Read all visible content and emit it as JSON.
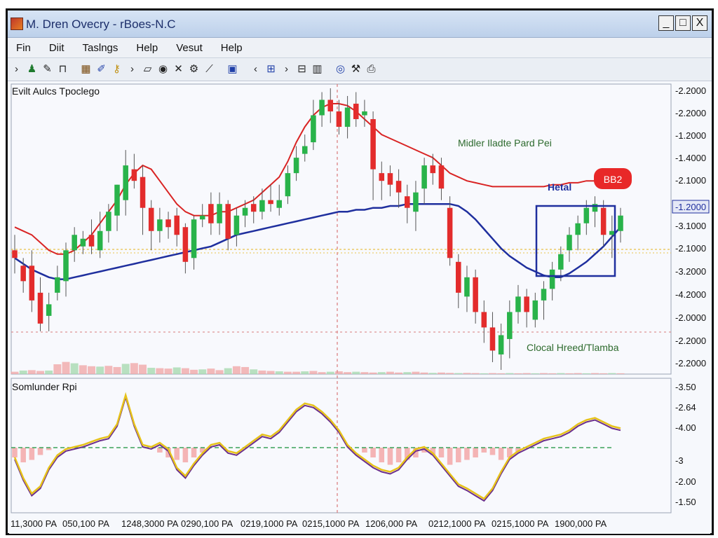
{
  "window": {
    "title": "M. Dren Ovecry - rBoes-N.C",
    "controls": [
      "_",
      "□",
      "X"
    ]
  },
  "menu": [
    "Fin",
    "Diit",
    "Taslngs",
    "Help",
    "Vesut",
    "Help"
  ],
  "toolbar_icons": [
    "arrow-icon",
    "person-icon",
    "pencil-icon",
    "bracket-icon",
    "chart-icon",
    "brush-icon",
    "key-icon",
    "chevron-icon",
    "rectangle-icon",
    "circle-icon",
    "cross-icon",
    "gear-icon",
    "line-icon",
    "screen-icon",
    "back-icon",
    "zoom-icon",
    "next-icon",
    "grid-icon",
    "bars-icon",
    "globe-icon",
    "tools-icon",
    "print-icon"
  ],
  "chart_data": {
    "type": "candlestick",
    "main_panel": {
      "title": "Evilt Aulcs Tpoclego",
      "price_axis_labels": [
        "-2.2000",
        "-2.2000",
        "-1.2000",
        "-1.4000",
        "-2.1000",
        "-1.2000",
        "-3.1000",
        "-2.1000",
        "-3.2000",
        "-4.2000",
        "-2.0000",
        "-2.2000",
        "-2.2000"
      ],
      "highlighted_price_label": "-1.2000",
      "annotations": {
        "upper_right": "Midler Iladte Pard Pei",
        "box_label": "Hetal",
        "badge": "BB2",
        "lower_right": "Clocal Hreed/Tlamba"
      },
      "candles": [
        [
          0,
          0.62,
          0.58,
          0.7,
          0.5
        ],
        [
          1,
          0.54,
          0.46,
          0.58,
          0.4
        ],
        [
          2,
          0.54,
          0.36,
          0.62,
          0.3
        ],
        [
          3,
          0.4,
          0.24,
          0.48,
          0.2
        ],
        [
          4,
          0.28,
          0.34,
          0.4,
          0.2
        ],
        [
          5,
          0.4,
          0.48,
          0.54,
          0.36
        ],
        [
          6,
          0.46,
          0.62,
          0.66,
          0.38
        ],
        [
          7,
          0.62,
          0.7,
          0.74,
          0.56
        ],
        [
          8,
          0.64,
          0.68,
          0.72,
          0.6
        ],
        [
          9,
          0.7,
          0.64,
          0.78,
          0.6
        ],
        [
          10,
          0.62,
          0.72,
          0.82,
          0.58
        ],
        [
          11,
          0.72,
          0.82,
          0.86,
          0.66
        ],
        [
          12,
          0.8,
          0.96,
          0.96,
          0.72
        ],
        [
          13,
          0.88,
          1.06,
          1.14,
          0.8
        ],
        [
          14,
          1.04,
          0.98,
          1.12,
          0.94
        ],
        [
          15,
          1.0,
          0.84,
          1.06,
          0.7
        ],
        [
          16,
          0.84,
          0.72,
          0.88,
          0.62
        ],
        [
          17,
          0.72,
          0.78,
          0.84,
          0.66
        ],
        [
          18,
          0.78,
          0.74,
          0.82,
          0.68
        ],
        [
          19,
          0.8,
          0.7,
          0.84,
          0.64
        ],
        [
          20,
          0.74,
          0.56,
          0.76,
          0.5
        ],
        [
          21,
          0.58,
          0.78,
          0.8,
          0.52
        ],
        [
          22,
          0.78,
          0.8,
          0.86,
          0.74
        ],
        [
          23,
          0.86,
          0.76,
          0.92,
          0.7
        ],
        [
          24,
          0.76,
          0.86,
          0.92,
          0.7
        ],
        [
          25,
          0.86,
          0.68,
          0.88,
          0.62
        ],
        [
          26,
          0.7,
          0.8,
          0.84,
          0.64
        ],
        [
          27,
          0.8,
          0.84,
          0.88,
          0.74
        ],
        [
          28,
          0.86,
          0.82,
          0.9,
          0.76
        ],
        [
          29,
          0.82,
          0.88,
          0.94,
          0.78
        ],
        [
          30,
          0.88,
          0.86,
          0.96,
          0.82
        ],
        [
          31,
          0.84,
          0.88,
          0.96,
          0.8
        ],
        [
          32,
          0.9,
          1.02,
          1.06,
          0.86
        ],
        [
          33,
          1.02,
          1.1,
          1.16,
          0.98
        ],
        [
          34,
          1.12,
          1.16,
          1.22,
          1.08
        ],
        [
          35,
          1.18,
          1.32,
          1.4,
          1.14
        ],
        [
          36,
          1.32,
          1.4,
          1.44,
          1.26
        ],
        [
          37,
          1.4,
          1.34,
          1.46,
          1.28
        ],
        [
          38,
          1.34,
          1.26,
          1.4,
          1.22
        ],
        [
          39,
          1.26,
          1.36,
          1.42,
          1.2
        ],
        [
          40,
          1.38,
          1.3,
          1.44,
          1.26
        ],
        [
          41,
          1.32,
          1.34,
          1.4,
          1.26
        ],
        [
          42,
          1.3,
          1.04,
          1.34,
          0.88
        ],
        [
          43,
          1.02,
          0.98,
          1.08,
          0.88
        ],
        [
          44,
          1.02,
          0.96,
          1.06,
          0.9
        ],
        [
          45,
          0.98,
          0.92,
          1.04,
          0.84
        ],
        [
          46,
          0.9,
          0.84,
          0.96,
          0.76
        ],
        [
          47,
          0.82,
          0.92,
          0.98,
          0.72
        ],
        [
          48,
          0.94,
          1.06,
          1.1,
          0.86
        ],
        [
          49,
          1.06,
          1.02,
          1.12,
          0.96
        ],
        [
          50,
          1.06,
          0.94,
          1.1,
          0.88
        ],
        [
          51,
          0.84,
          0.58,
          0.9,
          0.54
        ],
        [
          52,
          0.56,
          0.4,
          0.6,
          0.32
        ],
        [
          53,
          0.38,
          0.48,
          0.54,
          0.3
        ],
        [
          54,
          0.48,
          0.3,
          0.52,
          0.24
        ],
        [
          55,
          0.3,
          0.22,
          0.36,
          0.14
        ],
        [
          56,
          0.22,
          0.1,
          0.3,
          0.04
        ],
        [
          57,
          0.08,
          0.18,
          0.24,
          0.0
        ],
        [
          58,
          0.16,
          0.3,
          0.36,
          0.06
        ],
        [
          59,
          0.3,
          0.38,
          0.44,
          0.24
        ],
        [
          60,
          0.38,
          0.3,
          0.42,
          0.22
        ],
        [
          61,
          0.26,
          0.36,
          0.4,
          0.22
        ],
        [
          62,
          0.36,
          0.42,
          0.46,
          0.26
        ],
        [
          63,
          0.42,
          0.52,
          0.56,
          0.36
        ],
        [
          64,
          0.52,
          0.6,
          0.64,
          0.46
        ],
        [
          65,
          0.62,
          0.7,
          0.74,
          0.56
        ],
        [
          66,
          0.7,
          0.76,
          0.8,
          0.62
        ],
        [
          67,
          0.76,
          0.84,
          0.88,
          0.7
        ],
        [
          68,
          0.82,
          0.86,
          0.9,
          0.74
        ],
        [
          69,
          0.84,
          0.7,
          0.88,
          0.64
        ],
        [
          70,
          0.7,
          0.72,
          0.8,
          0.58
        ],
        [
          71,
          0.72,
          0.8,
          0.84,
          0.66
        ]
      ],
      "red_ma": [
        0.74,
        0.72,
        0.7,
        0.66,
        0.62,
        0.6,
        0.6,
        0.62,
        0.66,
        0.7,
        0.76,
        0.82,
        0.88,
        0.96,
        1.02,
        1.06,
        1.04,
        0.98,
        0.92,
        0.86,
        0.82,
        0.8,
        0.8,
        0.8,
        0.82,
        0.82,
        0.84,
        0.86,
        0.88,
        0.92,
        0.96,
        1.0,
        1.08,
        1.18,
        1.26,
        1.32,
        1.36,
        1.38,
        1.38,
        1.37,
        1.34,
        1.3,
        1.26,
        1.22,
        1.2,
        1.18,
        1.16,
        1.14,
        1.12,
        1.1,
        1.06,
        1.02,
        1.0,
        0.98,
        0.97,
        0.96,
        0.95,
        0.95,
        0.95,
        0.95,
        0.95,
        0.95,
        0.95,
        0.96,
        0.96,
        0.97,
        0.97,
        0.98,
        0.98,
        0.98,
        0.99,
        1.0
      ],
      "blue_ma": [
        0.58,
        0.55,
        0.52,
        0.5,
        0.48,
        0.47,
        0.47,
        0.48,
        0.49,
        0.5,
        0.51,
        0.52,
        0.53,
        0.54,
        0.55,
        0.56,
        0.57,
        0.58,
        0.59,
        0.6,
        0.61,
        0.62,
        0.63,
        0.64,
        0.66,
        0.68,
        0.7,
        0.71,
        0.72,
        0.73,
        0.74,
        0.75,
        0.76,
        0.77,
        0.78,
        0.79,
        0.8,
        0.81,
        0.82,
        0.82,
        0.83,
        0.83,
        0.84,
        0.84,
        0.85,
        0.85,
        0.86,
        0.86,
        0.86,
        0.86,
        0.86,
        0.86,
        0.85,
        0.82,
        0.78,
        0.73,
        0.68,
        0.63,
        0.59,
        0.56,
        0.53,
        0.51,
        0.49,
        0.48,
        0.48,
        0.5,
        0.53,
        0.56,
        0.6,
        0.64,
        0.69,
        0.74
      ],
      "volume": [
        0.12,
        0.18,
        0.2,
        0.16,
        0.18,
        0.5,
        0.62,
        0.55,
        0.45,
        0.4,
        0.38,
        0.42,
        0.36,
        0.52,
        0.56,
        0.48,
        0.32,
        0.3,
        0.28,
        0.34,
        0.3,
        0.22,
        0.24,
        0.28,
        0.2,
        0.3,
        0.4,
        0.36,
        0.24,
        0.18,
        0.16,
        0.14,
        0.12,
        0.12,
        0.14,
        0.16,
        0.1,
        0.12,
        0.14,
        0.1,
        0.12,
        0.1,
        0.08,
        0.1,
        0.12,
        0.08,
        0.1,
        0.12,
        0.08,
        0.06,
        0.08,
        0.06,
        0.05,
        0.06,
        0.05,
        0.04,
        0.05,
        0.04,
        0.05,
        0.04,
        0.05,
        0.04,
        0.05,
        0.04,
        0.05,
        0.04,
        0.05,
        0.04,
        0.05,
        0.04,
        0.05,
        0.04
      ]
    },
    "lower_panel": {
      "title": "Somlunder Rpi",
      "axis_labels": [
        "-3.50",
        "-2.64",
        "-4.00",
        "-3",
        "-2.00",
        "-1.50"
      ],
      "yellow_line": [
        0.4,
        0.2,
        0.05,
        0.12,
        0.3,
        0.42,
        0.48,
        0.5,
        0.52,
        0.55,
        0.58,
        0.6,
        0.72,
        1.0,
        0.72,
        0.52,
        0.5,
        0.54,
        0.48,
        0.3,
        0.22,
        0.34,
        0.44,
        0.52,
        0.54,
        0.46,
        0.44,
        0.5,
        0.56,
        0.62,
        0.6,
        0.66,
        0.76,
        0.86,
        0.92,
        0.9,
        0.84,
        0.76,
        0.66,
        0.52,
        0.44,
        0.38,
        0.32,
        0.28,
        0.26,
        0.3,
        0.4,
        0.48,
        0.5,
        0.44,
        0.34,
        0.24,
        0.14,
        0.1,
        0.05,
        0.0,
        0.1,
        0.26,
        0.4,
        0.46,
        0.5,
        0.54,
        0.58,
        0.6,
        0.62,
        0.66,
        0.72,
        0.76,
        0.78,
        0.74,
        0.7,
        0.68
      ],
      "histogram": [
        0.2,
        0.3,
        0.25,
        0.15,
        0.05,
        0,
        0,
        0,
        0,
        0,
        0,
        0,
        0,
        0,
        0,
        0,
        0,
        0.1,
        0.2,
        0.25,
        0.3,
        0.2,
        0.1,
        0,
        0,
        0,
        0,
        0,
        0,
        0,
        0,
        0,
        0,
        0,
        0,
        0,
        0,
        0,
        0,
        0,
        0,
        0.1,
        0.2,
        0.3,
        0.35,
        0.3,
        0.25,
        0.2,
        0.1,
        0.15,
        0.2,
        0.35,
        0.3,
        0.25,
        0.2,
        0.1,
        0.15,
        0.25,
        0.2,
        0.1,
        0,
        0,
        0,
        0,
        0,
        0,
        0,
        0,
        0,
        0,
        0,
        0
      ]
    },
    "time_labels": [
      "11,3000 PA",
      "050,100 PA",
      "1248,3000 PA",
      "0290,100 PA",
      "0219,1000 PA",
      "0215,1000 PA",
      "1206,000 PA",
      "0212,1000 PA",
      "0215,1000 PA",
      "1900,000 PA"
    ],
    "colors": {
      "bull": "#29b34a",
      "bear": "#e32c2c",
      "red_ma": "#d92424",
      "blue_ma": "#1f2f9e",
      "badge": "#e82828",
      "grid_dash": "#d97a7a",
      "zero_line": "#3aa35a",
      "yellow_line": "#e6c21a"
    }
  }
}
